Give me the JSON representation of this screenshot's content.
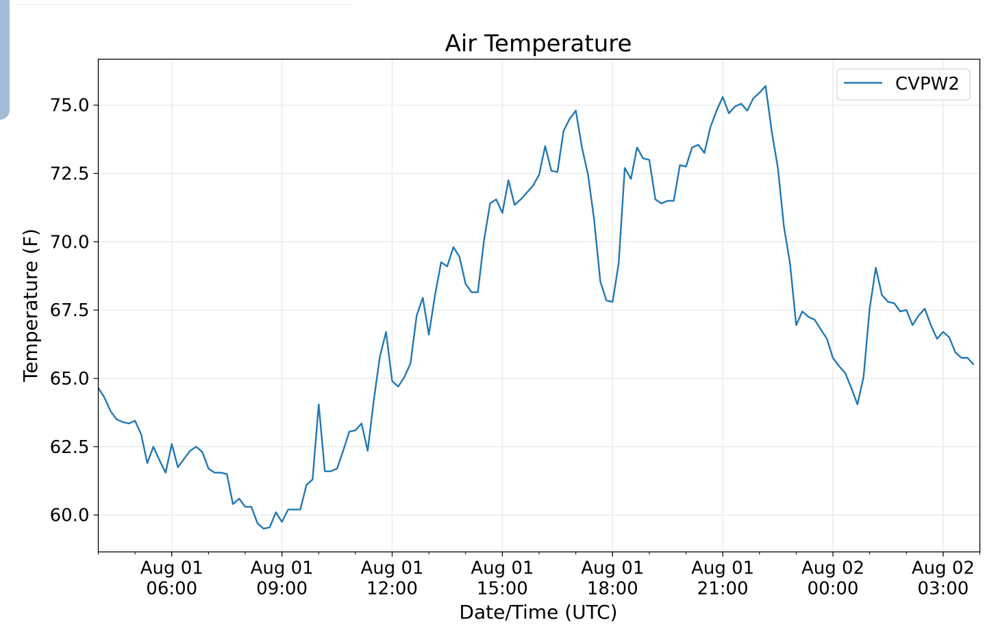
{
  "chart_data": {
    "type": "line",
    "title": "Air Temperature",
    "xlabel": "Date/Time (UTC)",
    "ylabel": "Temperature (F)",
    "x_units": "hours since Aug 01 00:00 UTC",
    "x_start": 4.0,
    "x_step_minutes": 10,
    "xlim": [
      4.0,
      28.0
    ],
    "ylim": [
      58.65,
      76.68
    ],
    "grid": true,
    "legend_position": "top-right",
    "x_ticks": [
      {
        "value": 6,
        "line1": "Aug 01",
        "line2": "06:00"
      },
      {
        "value": 9,
        "line1": "Aug 01",
        "line2": "09:00"
      },
      {
        "value": 12,
        "line1": "Aug 01",
        "line2": "12:00"
      },
      {
        "value": 15,
        "line1": "Aug 01",
        "line2": "15:00"
      },
      {
        "value": 18,
        "line1": "Aug 01",
        "line2": "18:00"
      },
      {
        "value": 21,
        "line1": "Aug 01",
        "line2": "21:00"
      },
      {
        "value": 24,
        "line1": "Aug 02",
        "line2": "00:00"
      },
      {
        "value": 27,
        "line1": "Aug 02",
        "line2": "03:00"
      }
    ],
    "y_ticks": [
      {
        "value": 60,
        "label": "60.0"
      },
      {
        "value": 62.5,
        "label": "62.5"
      },
      {
        "value": 65,
        "label": "65.0"
      },
      {
        "value": 67.5,
        "label": "67.5"
      },
      {
        "value": 70,
        "label": "70.0"
      },
      {
        "value": 72.5,
        "label": "72.5"
      },
      {
        "value": 75,
        "label": "75.0"
      }
    ],
    "series": [
      {
        "name": "CVPW2",
        "color": "#1f77b4",
        "values": [
          64.65,
          64.3,
          63.8,
          63.5,
          63.4,
          63.35,
          63.45,
          62.95,
          61.9,
          62.5,
          62.0,
          61.55,
          62.6,
          61.75,
          62.05,
          62.35,
          62.5,
          62.3,
          61.7,
          61.55,
          61.55,
          61.5,
          60.4,
          60.6,
          60.3,
          60.3,
          59.7,
          59.5,
          59.55,
          60.1,
          59.75,
          60.2,
          60.2,
          60.2,
          61.1,
          61.3,
          64.05,
          61.6,
          61.6,
          61.7,
          62.35,
          63.05,
          63.1,
          63.35,
          62.35,
          64.2,
          65.8,
          66.7,
          64.9,
          64.7,
          65.05,
          65.55,
          67.3,
          67.95,
          66.6,
          68.05,
          69.25,
          69.1,
          69.8,
          69.45,
          68.45,
          68.15,
          68.15,
          70.05,
          71.4,
          71.55,
          71.05,
          72.25,
          71.35,
          71.55,
          71.8,
          72.05,
          72.45,
          73.5,
          72.6,
          72.55,
          74.05,
          74.5,
          74.8,
          73.45,
          72.45,
          70.8,
          68.55,
          67.85,
          67.8,
          69.2,
          72.7,
          72.3,
          73.45,
          73.05,
          73.0,
          71.55,
          71.4,
          71.5,
          71.5,
          72.8,
          72.75,
          73.45,
          73.55,
          73.25,
          74.2,
          74.8,
          75.3,
          74.7,
          74.95,
          75.05,
          74.8,
          75.25,
          75.45,
          75.7,
          74.05,
          72.7,
          70.55,
          69.2,
          66.95,
          67.45,
          67.25,
          67.15,
          66.8,
          66.45,
          65.75,
          65.45,
          65.2,
          64.65,
          64.05,
          65.05,
          67.55,
          69.05,
          68.05,
          67.8,
          67.75,
          67.45,
          67.5,
          66.95,
          67.3,
          67.55,
          66.95,
          66.45,
          66.7,
          66.5,
          65.95,
          65.75,
          65.75,
          65.5
        ]
      }
    ]
  }
}
